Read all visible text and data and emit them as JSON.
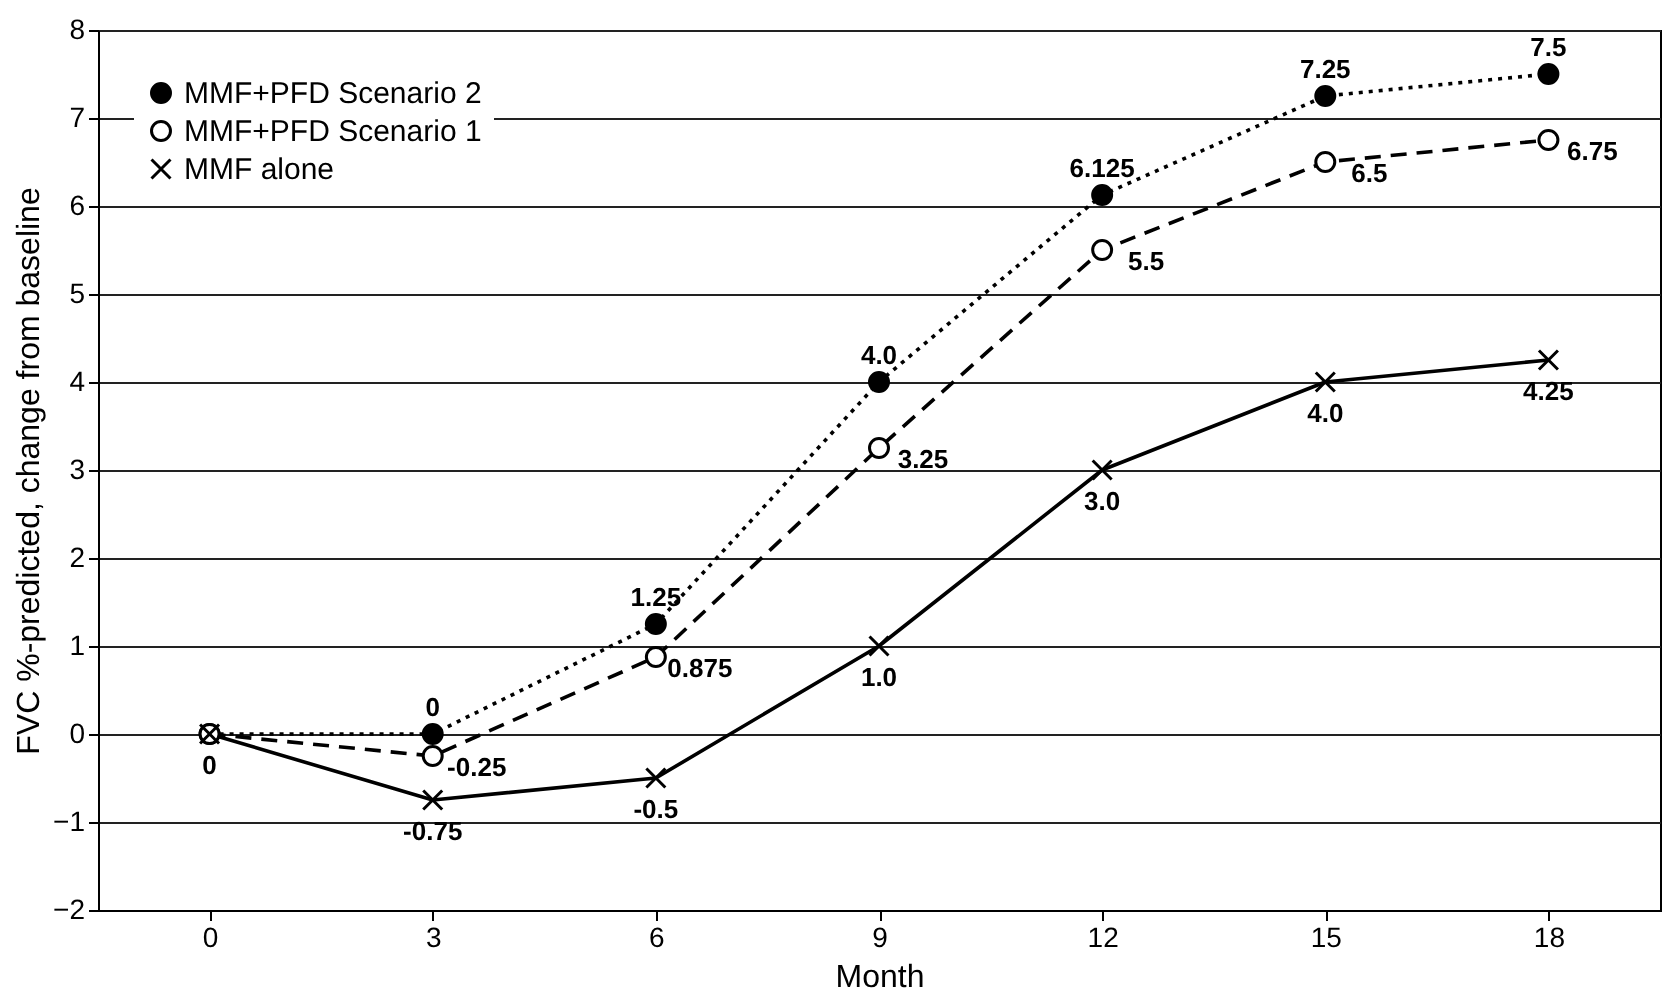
{
  "chart_data": {
    "type": "line",
    "xlabel": "Month",
    "ylabel": "FVC %-predicted, change from baseline",
    "x": [
      0,
      3,
      6,
      9,
      12,
      15,
      18
    ],
    "xlim": [
      -1.5,
      19.5
    ],
    "xticks": [
      0,
      3,
      6,
      9,
      12,
      15,
      18
    ],
    "ylim": [
      -2,
      8
    ],
    "yticks": [
      -2,
      -1,
      0,
      1,
      2,
      3,
      4,
      5,
      6,
      7,
      8
    ],
    "grid": "y",
    "legend": "top left",
    "series": [
      {
        "name": "MMF+PFD Scenario 2",
        "color": "#000000",
        "marker": "circle",
        "line_style": "dotted",
        "values": [
          0,
          0,
          1.25,
          4.0,
          6.125,
          7.25,
          7.5
        ],
        "value_labels": [
          null,
          "0",
          "1.25",
          "4.0",
          "6.125",
          "7.25",
          "7.5"
        ]
      },
      {
        "name": "MMF+PFD Scenario 1",
        "color": "#000000",
        "marker": "circle",
        "line_style": "dashed",
        "values": [
          0,
          -0.25,
          0.875,
          3.25,
          5.5,
          6.5,
          6.75
        ],
        "value_labels": [
          null,
          "-0.25",
          "0.875",
          "3.25",
          "5.5",
          "6.5",
          "6.75"
        ]
      },
      {
        "name": "MMF alone",
        "color": "#000000",
        "marker": "cross",
        "line_style": "solid",
        "values": [
          0,
          -0.75,
          -0.5,
          1.0,
          3.0,
          4.0,
          4.25
        ],
        "value_labels": [
          "0",
          "-0.75",
          "-0.5",
          "1.0",
          "3.0",
          "4.0",
          "4.25"
        ]
      }
    ]
  }
}
